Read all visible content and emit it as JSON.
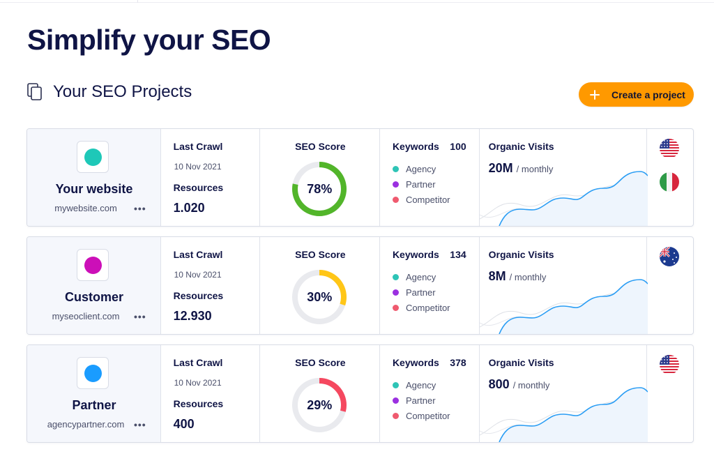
{
  "page": {
    "title": "Simplify your SEO"
  },
  "section": {
    "title": "Your SEO Projects",
    "icon": "copy-icon"
  },
  "actions": {
    "create_label": "Create a project",
    "create_icon": "plus-icon",
    "accent": "#ff9900"
  },
  "labels": {
    "last_crawl": "Last Crawl",
    "resources": "Resources",
    "seo_score": "SEO Score",
    "keywords": "Keywords",
    "organic_visits": "Organic Visits",
    "more": "•••"
  },
  "keyword_legend": [
    {
      "label": "Agency",
      "color": "#2ec4b6"
    },
    {
      "label": "Partner",
      "color": "#9b30e0"
    },
    {
      "label": "Competitor",
      "color": "#ef5a6f"
    }
  ],
  "projects": [
    {
      "name": "Your website",
      "url": "mywebsite.com",
      "dot_color": "#1ec8b8",
      "crawl_date": "10 Nov 2021",
      "resources": "1.020",
      "score": 78,
      "score_label": "78%",
      "score_color": "#52b52a",
      "keywords": "100",
      "visits": "20M",
      "visits_unit": "/ monthly",
      "flags": [
        "us-flag",
        "it-flag"
      ]
    },
    {
      "name": "Customer",
      "url": "myseoclient.com",
      "dot_color": "#cc0fb8",
      "crawl_date": "10 Nov 2021",
      "resources": "12.930",
      "score": 30,
      "score_label": "30%",
      "score_color": "#ffc617",
      "keywords": "134",
      "visits": "8M",
      "visits_unit": "/ monthly",
      "flags": [
        "au-flag"
      ]
    },
    {
      "name": "Partner",
      "url": "agencypartner.com",
      "dot_color": "#1a9cff",
      "crawl_date": "10 Nov 2021",
      "resources": "400",
      "score": 29,
      "score_label": "29%",
      "score_color": "#f5485f",
      "keywords": "378",
      "visits": "800",
      "visits_unit": "/ monthly",
      "flags": [
        "us-flag"
      ]
    }
  ]
}
